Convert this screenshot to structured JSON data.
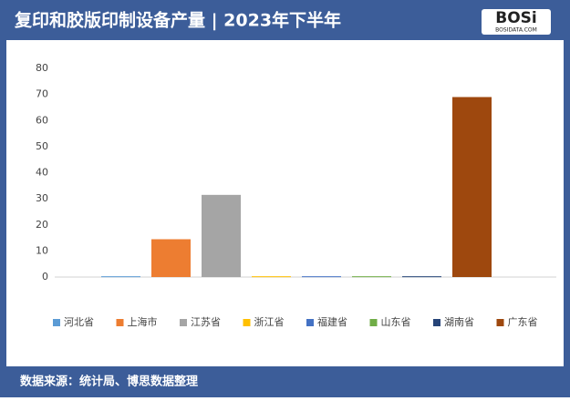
{
  "chart_data": {
    "type": "bar",
    "title": "复印和胶版印制设备产量 | 2023年下半年",
    "logo": "BOSi",
    "logo_sub": "BOSIDATA.COM",
    "source": "数据来源：统计局、博思数据整理",
    "categories": [
      "河北省",
      "上海市",
      "江苏省",
      "浙江省",
      "福建省",
      "山东省",
      "湖南省",
      "广东省"
    ],
    "values": [
      0.3,
      14.5,
      31.5,
      0.3,
      0.3,
      0.3,
      0.3,
      69
    ],
    "colors": [
      "#5b9bd5",
      "#ed7d31",
      "#a5a5a5",
      "#ffc000",
      "#4472c4",
      "#70ad47",
      "#264478",
      "#9e480e"
    ],
    "ylim": [
      0,
      80
    ],
    "yticks": [
      0,
      10,
      20,
      30,
      40,
      50,
      60,
      70,
      80
    ],
    "grid": false,
    "legend": "bottom"
  }
}
